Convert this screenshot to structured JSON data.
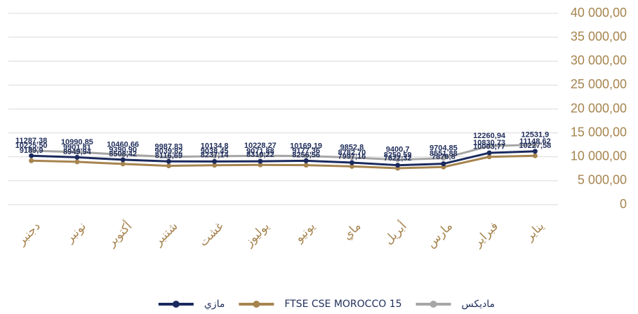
{
  "chart_data": {
    "type": "line",
    "categories": [
      "دجنبر",
      "نونبر",
      "أكتوبر",
      "شتنبر",
      "غشت",
      "يوليوز",
      "يونيو",
      "ماي",
      "أبريل",
      "مارس",
      "فبراير",
      "يناير"
    ],
    "series": [
      {
        "name": "ماديكس",
        "color": "#a6a6a6",
        "values": [
          11287.38,
          10990.85,
          10460.66,
          9987.83,
          10134.8,
          10228.27,
          10169.19,
          9852.8,
          9400.7,
          9704.85,
          12260.94,
          12531.9
        ],
        "value_labels": [
          "11287,38",
          "10990,85",
          "10460,66",
          "9987,83",
          "10134,8",
          "10228,27",
          "10169,19",
          "9852,8",
          "9400,7",
          "9704,85",
          "12260,94",
          "12531,9"
        ]
      },
      {
        "name": "FTSE CSE MOROCCO 15",
        "color": "#a6844f",
        "values": [
          9189.9,
          8949.94,
          8508.42,
          8116.69,
          8237.14,
          8310.22,
          8256.56,
          7997.16,
          7622.32,
          7876.8,
          10003.77,
          10227.58
        ],
        "value_labels": [
          "9189,9",
          "8949,94",
          "8508,42",
          "8116,69",
          "8237,14",
          "8310,22",
          "8256,56",
          "7997,16",
          "7622,32",
          "7876,8",
          "10003,77",
          "10227,58"
        ]
      },
      {
        "name": "مازي",
        "color": "#1b2a5e",
        "values": [
          10225.5,
          9901.81,
          9390.9,
          9039.82,
          9038.45,
          9071.88,
          9177.36,
          8782.7,
          8250.59,
          8551.88,
          10830.73,
          11148.62
        ],
        "value_labels": [
          "10225,50",
          "9901,81",
          "9390,90",
          "9039,82",
          "9038,45",
          "9071,88",
          "9177,36",
          "8782,70",
          "8250,59",
          "8551,88",
          "10830,73",
          "11148,62"
        ]
      }
    ],
    "ylim": [
      0,
      40000
    ],
    "yticks": [
      0,
      {
        "value": 5000,
        "label": "5 000,00"
      },
      {
        "value": 10000,
        "label": "10 000,00"
      },
      {
        "value": 15000,
        "label": "15 000,00"
      },
      {
        "value": 20000,
        "label": "20 000,00"
      },
      {
        "value": 25000,
        "label": "25 000,00"
      },
      {
        "value": 30000,
        "label": "30 000,00"
      },
      {
        "value": 35000,
        "label": "35 000,00"
      },
      {
        "value": 40000,
        "label": "40 000,00"
      }
    ],
    "grid": true,
    "legend": "bottom"
  }
}
